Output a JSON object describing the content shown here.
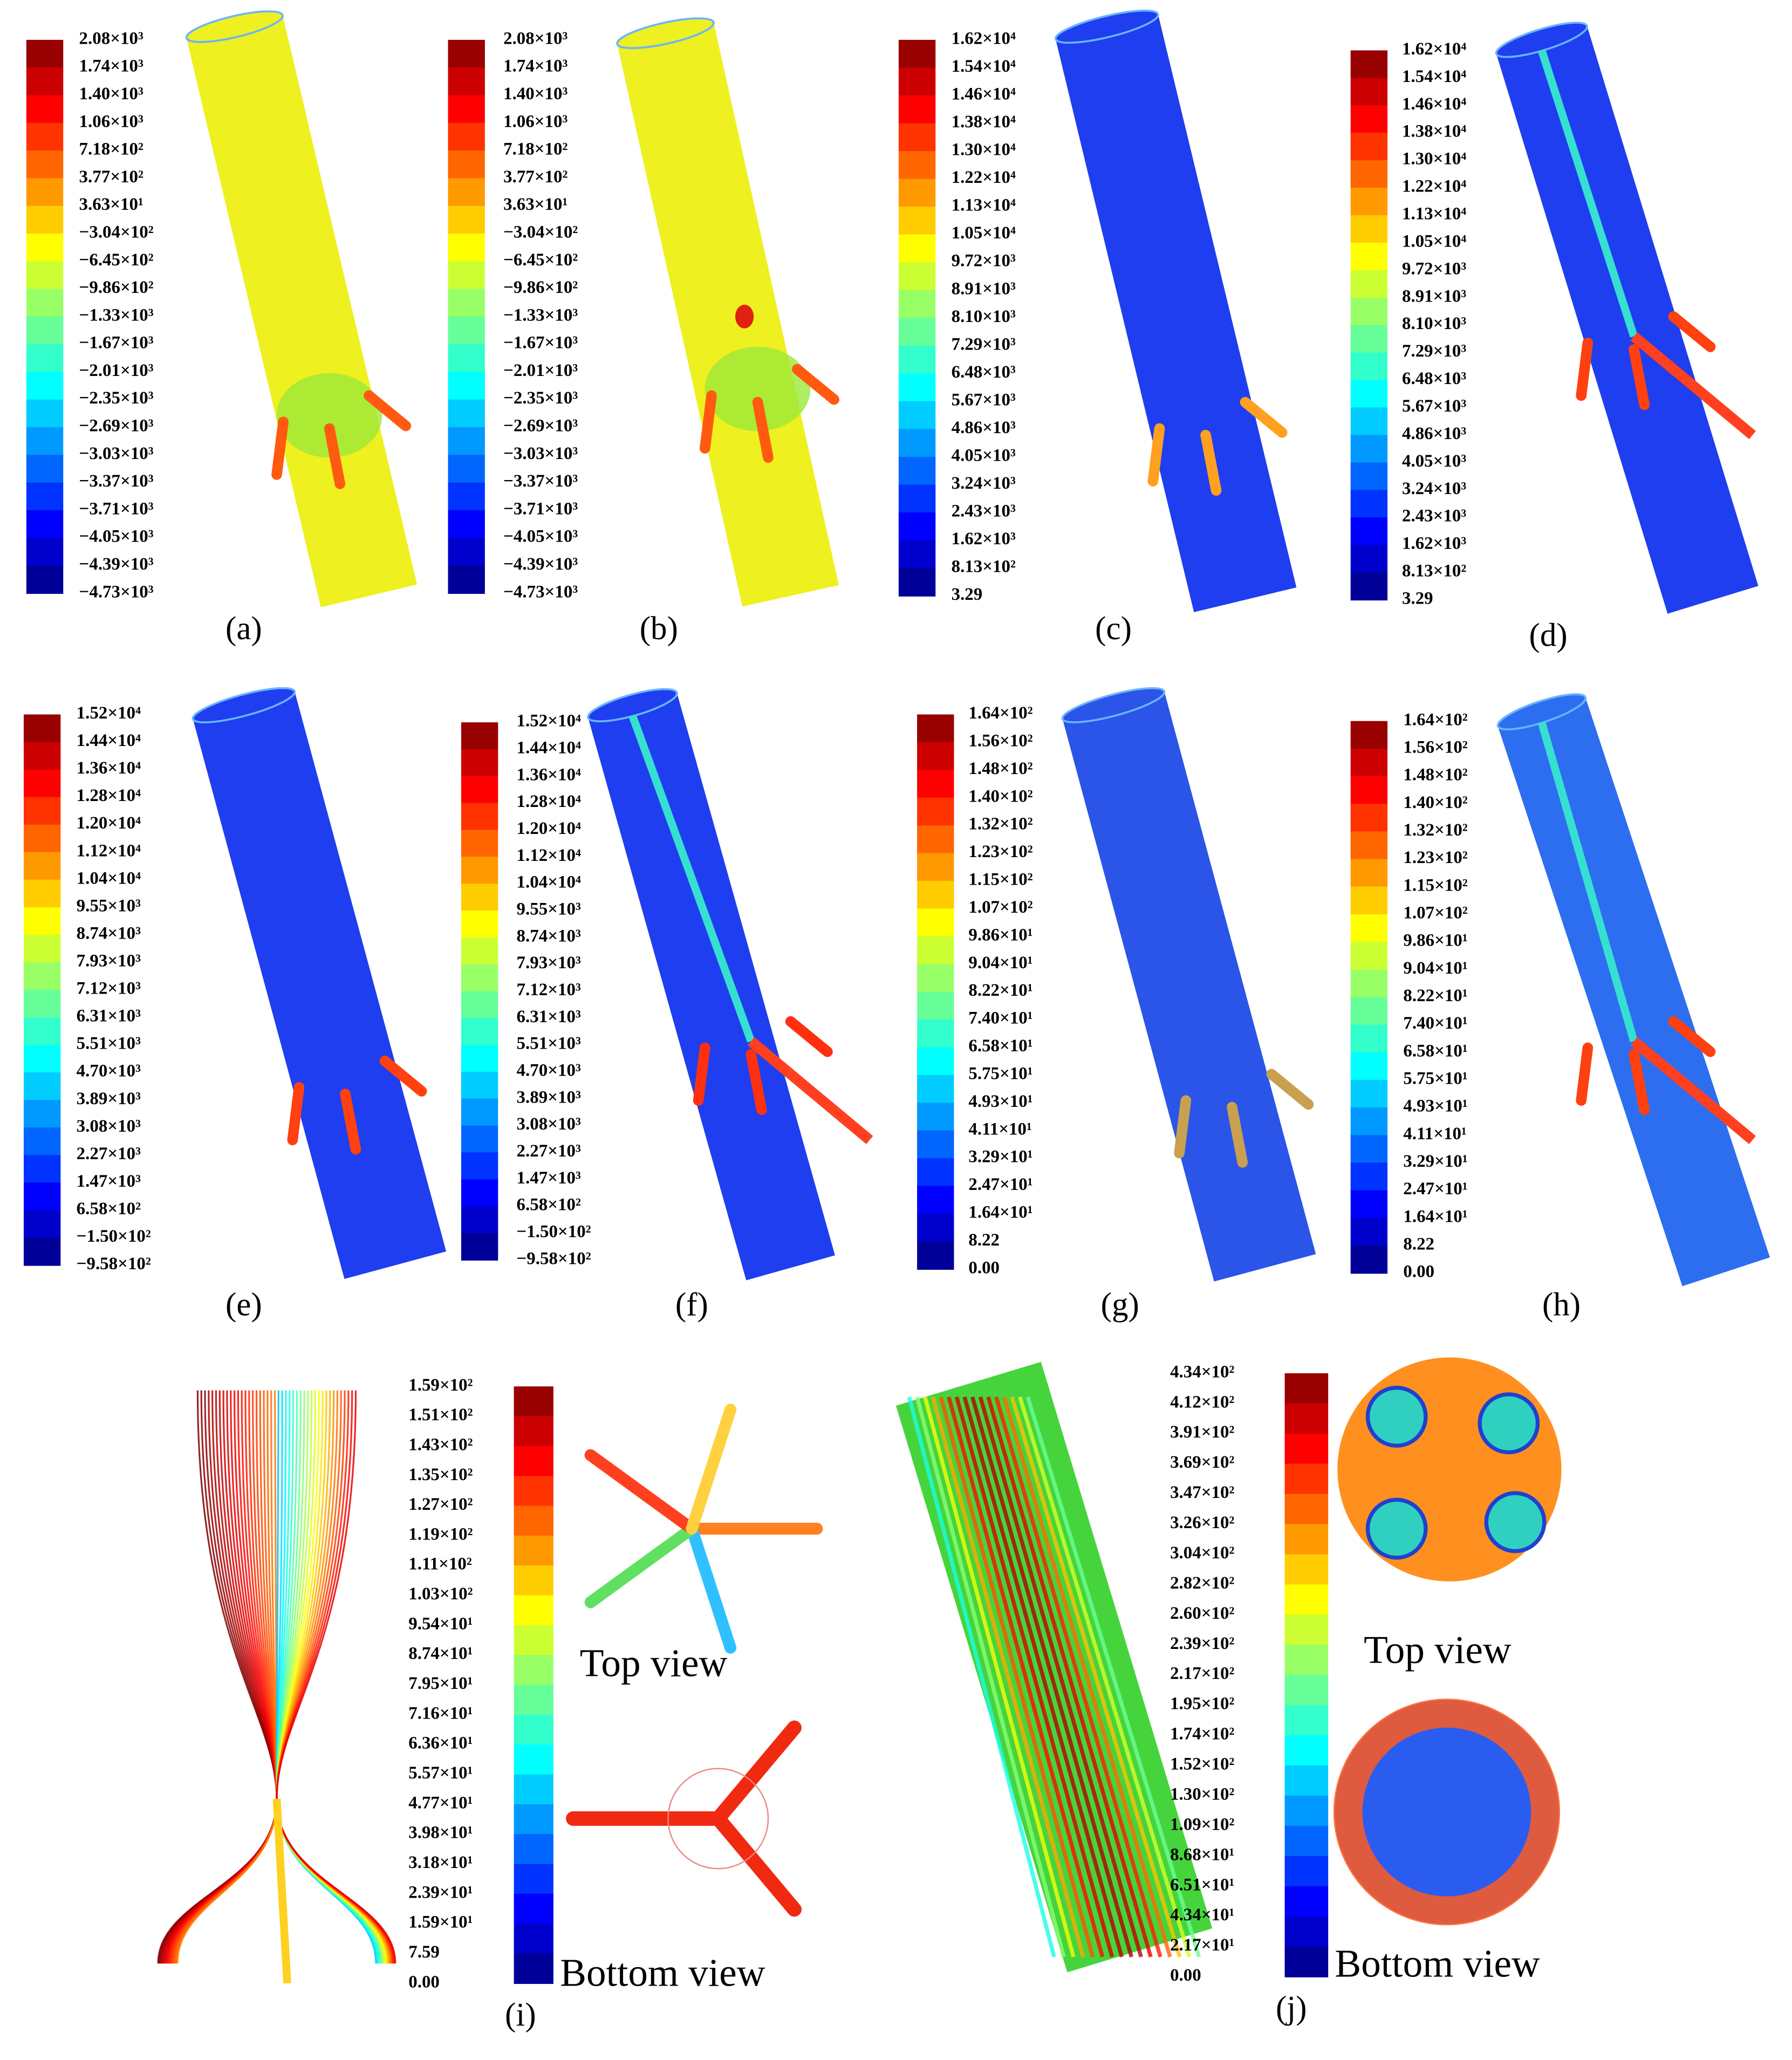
{
  "panels": [
    {
      "label": "(a)",
      "colorbar": [
        "2.08×10³",
        "1.74×10³",
        "1.40×10³",
        "1.06×10³",
        "7.18×10²",
        "3.77×10²",
        "3.63×10¹",
        "−3.04×10²",
        "−6.45×10²",
        "−9.86×10²",
        "−1.33×10³",
        "−1.67×10³",
        "−2.01×10³",
        "−2.35×10³",
        "−2.69×10³",
        "−3.03×10³",
        "−3.37×10³",
        "−3.71×10³",
        "−4.05×10³",
        "−4.39×10³",
        "−4.73×10³"
      ]
    },
    {
      "label": "(b)",
      "colorbar": [
        "2.08×10³",
        "1.74×10³",
        "1.40×10³",
        "1.06×10³",
        "7.18×10²",
        "3.77×10²",
        "3.63×10¹",
        "−3.04×10²",
        "−6.45×10²",
        "−9.86×10²",
        "−1.33×10³",
        "−1.67×10³",
        "−2.01×10³",
        "−2.35×10³",
        "−2.69×10³",
        "−3.03×10³",
        "−3.37×10³",
        "−3.71×10³",
        "−4.05×10³",
        "−4.39×10³",
        "−4.73×10³"
      ]
    },
    {
      "label": "(c)",
      "colorbar": [
        "1.62×10⁴",
        "1.54×10⁴",
        "1.46×10⁴",
        "1.38×10⁴",
        "1.30×10⁴",
        "1.22×10⁴",
        "1.13×10⁴",
        "1.05×10⁴",
        "9.72×10³",
        "8.91×10³",
        "8.10×10³",
        "7.29×10³",
        "6.48×10³",
        "5.67×10³",
        "4.86×10³",
        "4.05×10³",
        "3.24×10³",
        "2.43×10³",
        "1.62×10³",
        "8.13×10²",
        "3.29"
      ]
    },
    {
      "label": "(d)",
      "colorbar": [
        "1.62×10⁴",
        "1.54×10⁴",
        "1.46×10⁴",
        "1.38×10⁴",
        "1.30×10⁴",
        "1.22×10⁴",
        "1.13×10⁴",
        "1.05×10⁴",
        "9.72×10³",
        "8.91×10³",
        "8.10×10³",
        "7.29×10³",
        "6.48×10³",
        "5.67×10³",
        "4.86×10³",
        "4.05×10³",
        "3.24×10³",
        "2.43×10³",
        "1.62×10³",
        "8.13×10²",
        "3.29"
      ]
    },
    {
      "label": "(e)",
      "colorbar": [
        "1.52×10⁴",
        "1.44×10⁴",
        "1.36×10⁴",
        "1.28×10⁴",
        "1.20×10⁴",
        "1.12×10⁴",
        "1.04×10⁴",
        "9.55×10³",
        "8.74×10³",
        "7.93×10³",
        "7.12×10³",
        "6.31×10³",
        "5.51×10³",
        "4.70×10³",
        "3.89×10³",
        "3.08×10³",
        "2.27×10³",
        "1.47×10³",
        "6.58×10²",
        "−1.50×10²",
        "−9.58×10²"
      ]
    },
    {
      "label": "(f)",
      "colorbar": [
        "1.52×10⁴",
        "1.44×10⁴",
        "1.36×10⁴",
        "1.28×10⁴",
        "1.20×10⁴",
        "1.12×10⁴",
        "1.04×10⁴",
        "9.55×10³",
        "8.74×10³",
        "7.93×10³",
        "7.12×10³",
        "6.31×10³",
        "5.51×10³",
        "4.70×10³",
        "3.89×10³",
        "3.08×10³",
        "2.27×10³",
        "1.47×10³",
        "6.58×10²",
        "−1.50×10²",
        "−9.58×10²"
      ]
    },
    {
      "label": "(g)",
      "colorbar": [
        "1.64×10²",
        "1.56×10²",
        "1.48×10²",
        "1.40×10²",
        "1.32×10²",
        "1.23×10²",
        "1.15×10²",
        "1.07×10²",
        "9.86×10¹",
        "9.04×10¹",
        "8.22×10¹",
        "7.40×10¹",
        "6.58×10¹",
        "5.75×10¹",
        "4.93×10¹",
        "4.11×10¹",
        "3.29×10¹",
        "2.47×10¹",
        "1.64×10¹",
        "8.22",
        "0.00"
      ]
    },
    {
      "label": "(h)",
      "colorbar": [
        "1.64×10²",
        "1.56×10²",
        "1.48×10²",
        "1.40×10²",
        "1.32×10²",
        "1.23×10²",
        "1.15×10²",
        "1.07×10²",
        "9.86×10¹",
        "9.04×10¹",
        "8.22×10¹",
        "7.40×10¹",
        "6.58×10¹",
        "5.75×10¹",
        "4.93×10¹",
        "4.11×10¹",
        "3.29×10¹",
        "2.47×10¹",
        "1.64×10¹",
        "8.22",
        "0.00"
      ]
    },
    {
      "label": "(i)",
      "colorbar": [
        "1.59×10²",
        "1.51×10²",
        "1.43×10²",
        "1.35×10²",
        "1.27×10²",
        "1.19×10²",
        "1.11×10²",
        "1.03×10²",
        "9.54×10¹",
        "8.74×10¹",
        "7.95×10¹",
        "7.16×10¹",
        "6.36×10¹",
        "5.57×10¹",
        "4.77×10¹",
        "3.98×10¹",
        "3.18×10¹",
        "2.39×10¹",
        "1.59×10¹",
        "7.59",
        "0.00"
      ],
      "top_view": "Top view",
      "bottom_view": "Bottom view"
    },
    {
      "label": "(j)",
      "colorbar": [
        "4.34×10²",
        "4.12×10²",
        "3.91×10²",
        "3.69×10²",
        "3.47×10²",
        "3.26×10²",
        "3.04×10²",
        "2.82×10²",
        "2.60×10²",
        "2.39×10²",
        "2.17×10²",
        "1.95×10²",
        "1.74×10²",
        "1.52×10²",
        "1.30×10²",
        "1.09×10²",
        "8.68×10¹",
        "6.51×10¹",
        "4.34×10¹",
        "2.17×10¹",
        "0.00"
      ],
      "top_view": "Top view",
      "bottom_view": "Bottom view"
    }
  ]
}
